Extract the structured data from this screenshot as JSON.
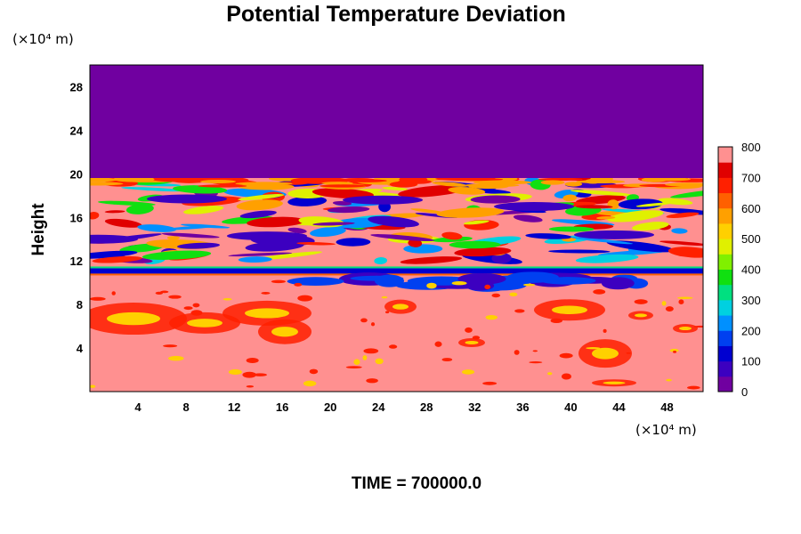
{
  "chart_data": {
    "type": "heatmap",
    "title": "Potential Temperature Deviation",
    "ylabel": "Height",
    "xlabel": "",
    "x_unit": "(×10⁴ m)",
    "y_unit": "(×10⁴ m)",
    "x_ticks": [
      4,
      8,
      12,
      16,
      20,
      24,
      28,
      32,
      36,
      40,
      44,
      48
    ],
    "y_ticks": [
      4,
      8,
      12,
      16,
      20,
      24,
      28
    ],
    "xlim": [
      0,
      51
    ],
    "ylim": [
      0,
      30
    ],
    "colorbar": {
      "ticks": [
        0,
        100,
        200,
        300,
        400,
        500,
        600,
        700,
        800
      ],
      "range": [
        0,
        800
      ],
      "colors": [
        "#7000a0",
        "#3c00c0",
        "#0000d0",
        "#0040f0",
        "#0090ff",
        "#00d0e0",
        "#00e080",
        "#10e010",
        "#80f000",
        "#e0f000",
        "#ffd000",
        "#ffa000",
        "#ff6000",
        "#ff2000",
        "#e00000",
        "#ff9090"
      ]
    },
    "regions": [
      {
        "name": "upper uniform layer",
        "y_range": [
          19.8,
          30
        ],
        "value": 0
      },
      {
        "name": "mixed layer",
        "y_range": [
          11,
          19.8
        ],
        "value": "variable 0-800"
      },
      {
        "name": "lower layer",
        "y_range": [
          0,
          11
        ],
        "value": 800
      }
    ]
  },
  "footer": "TIME = 700000.0"
}
